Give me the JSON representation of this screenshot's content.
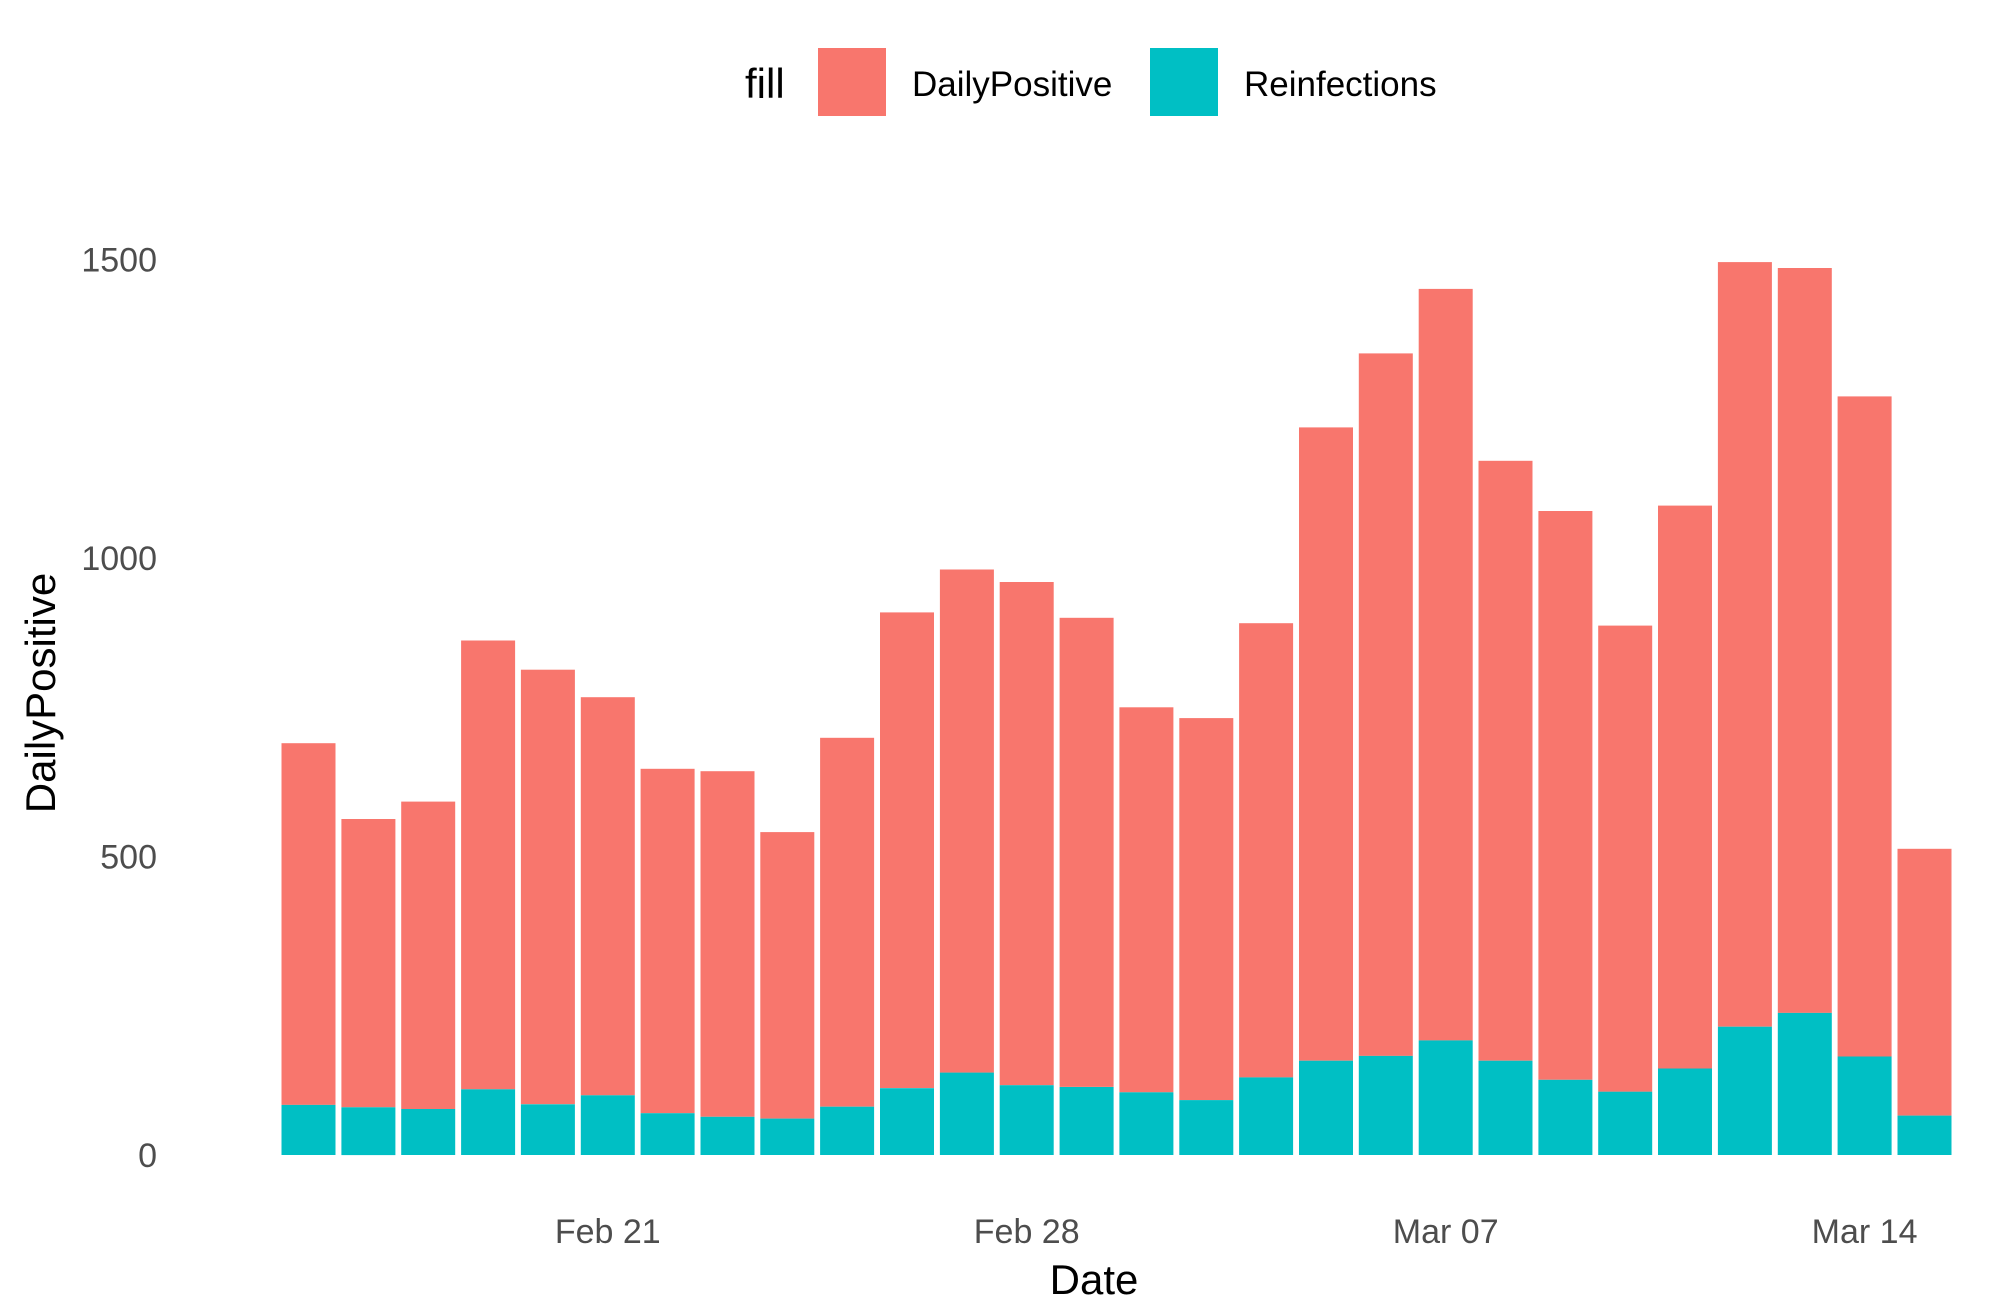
{
  "chart_data": {
    "type": "bar",
    "stacked": true,
    "title": "",
    "xlabel": "Date",
    "ylabel": "DailyPositive",
    "ylim": [
      0,
      1600
    ],
    "yticks": [
      0,
      500,
      1000,
      1500
    ],
    "ytick_labels": [
      "0",
      "500",
      "1000",
      "1500"
    ],
    "xtick_labels": [
      {
        "label": "Feb 21",
        "date": "2021-02-21"
      },
      {
        "label": "Feb 28",
        "date": "2021-02-28"
      },
      {
        "label": "Mar 07",
        "date": "2021-03-07"
      },
      {
        "label": "Mar 14",
        "date": "2021-03-14"
      }
    ],
    "grid": false,
    "legend": {
      "position": "top",
      "title": "fill",
      "entries": [
        {
          "name": "DailyPositive",
          "color": "#F8766D"
        },
        {
          "name": "Reinfections",
          "color": "#00BFC4"
        }
      ]
    },
    "categories": [
      "2021-02-16",
      "2021-02-17",
      "2021-02-18",
      "2021-02-19",
      "2021-02-20",
      "2021-02-21",
      "2021-02-22",
      "2021-02-23",
      "2021-02-24",
      "2021-02-25",
      "2021-02-26",
      "2021-02-27",
      "2021-02-28",
      "2021-03-01",
      "2021-03-02",
      "2021-03-03",
      "2021-03-04",
      "2021-03-05",
      "2021-03-06",
      "2021-03-07",
      "2021-03-08",
      "2021-03-09",
      "2021-03-10",
      "2021-03-11",
      "2021-03-12",
      "2021-03-13",
      "2021-03-14",
      "2021-03-15",
      "2021-03-16",
      "2021-03-17"
    ],
    "series": [
      {
        "name": "DailyPositive",
        "color": "#F8766D",
        "values": [
          690,
          563,
          592,
          862,
          813,
          767,
          647,
          643,
          541,
          699,
          909,
          981,
          960,
          900,
          750,
          732,
          891,
          1219,
          1343,
          1451,
          1163,
          1079,
          887,
          1088,
          1496,
          1486,
          1271,
          513,
          0,
          0
        ]
      },
      {
        "name": "Reinfections",
        "color": "#00BFC4",
        "values": [
          84,
          80,
          77,
          110,
          85,
          100,
          70,
          64,
          61,
          81,
          112,
          138,
          117,
          114,
          105,
          92,
          130,
          158,
          166,
          192,
          158,
          126,
          106,
          145,
          215,
          238,
          165,
          66,
          0,
          0
        ]
      }
    ]
  }
}
